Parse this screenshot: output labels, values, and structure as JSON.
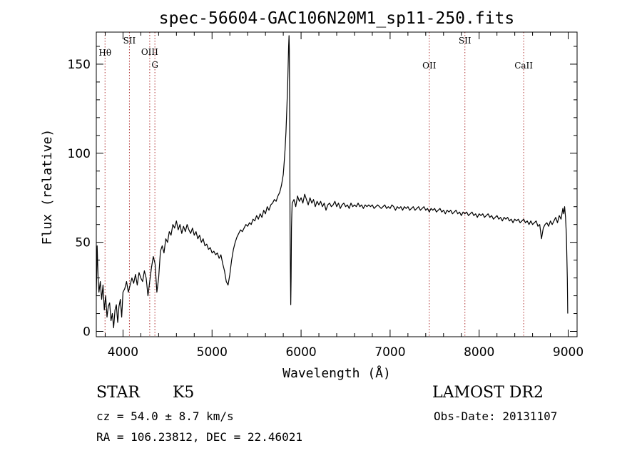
{
  "chart_data": {
    "type": "line",
    "title": "spec-56604-GAC106N20M1_sp11-250.fits",
    "xlabel": "Wavelength (Å)",
    "ylabel": "Flux (relative)",
    "xlim": [
      3700,
      9100
    ],
    "ylim": [
      -3,
      168
    ],
    "x_ticks": [
      4000,
      5000,
      6000,
      7000,
      8000,
      9000
    ],
    "y_ticks": [
      0,
      50,
      100,
      150
    ],
    "grid": false,
    "series": [
      {
        "points": [
          [
            3700,
            20
          ],
          [
            3710,
            48
          ],
          [
            3720,
            30
          ],
          [
            3730,
            22
          ],
          [
            3745,
            28
          ],
          [
            3760,
            18
          ],
          [
            3775,
            26
          ],
          [
            3790,
            12
          ],
          [
            3805,
            20
          ],
          [
            3820,
            8
          ],
          [
            3835,
            14
          ],
          [
            3850,
            16
          ],
          [
            3865,
            6
          ],
          [
            3880,
            10
          ],
          [
            3895,
            2
          ],
          [
            3910,
            12
          ],
          [
            3925,
            15
          ],
          [
            3940,
            5
          ],
          [
            3955,
            14
          ],
          [
            3970,
            18
          ],
          [
            3985,
            8
          ],
          [
            4000,
            22
          ],
          [
            4020,
            24
          ],
          [
            4040,
            28
          ],
          [
            4060,
            22
          ],
          [
            4080,
            26
          ],
          [
            4100,
            30
          ],
          [
            4120,
            27
          ],
          [
            4140,
            32
          ],
          [
            4160,
            26
          ],
          [
            4180,
            33
          ],
          [
            4200,
            30
          ],
          [
            4220,
            28
          ],
          [
            4240,
            34
          ],
          [
            4260,
            30
          ],
          [
            4280,
            20
          ],
          [
            4300,
            28
          ],
          [
            4320,
            36
          ],
          [
            4340,
            42
          ],
          [
            4360,
            38
          ],
          [
            4380,
            22
          ],
          [
            4400,
            30
          ],
          [
            4420,
            45
          ],
          [
            4440,
            48
          ],
          [
            4460,
            44
          ],
          [
            4480,
            52
          ],
          [
            4500,
            50
          ],
          [
            4520,
            56
          ],
          [
            4540,
            54
          ],
          [
            4560,
            60
          ],
          [
            4580,
            58
          ],
          [
            4600,
            62
          ],
          [
            4620,
            57
          ],
          [
            4640,
            60
          ],
          [
            4660,
            55
          ],
          [
            4680,
            59
          ],
          [
            4700,
            56
          ],
          [
            4720,
            60
          ],
          [
            4740,
            57
          ],
          [
            4760,
            55
          ],
          [
            4780,
            58
          ],
          [
            4800,
            54
          ],
          [
            4820,
            56
          ],
          [
            4840,
            52
          ],
          [
            4860,
            54
          ],
          [
            4880,
            50
          ],
          [
            4900,
            52
          ],
          [
            4920,
            48
          ],
          [
            4940,
            49
          ],
          [
            4960,
            46
          ],
          [
            4980,
            47
          ],
          [
            5000,
            44
          ],
          [
            5020,
            45
          ],
          [
            5040,
            43
          ],
          [
            5060,
            44
          ],
          [
            5080,
            41
          ],
          [
            5100,
            43
          ],
          [
            5120,
            38
          ],
          [
            5140,
            34
          ],
          [
            5160,
            28
          ],
          [
            5180,
            26
          ],
          [
            5200,
            32
          ],
          [
            5220,
            40
          ],
          [
            5240,
            46
          ],
          [
            5260,
            50
          ],
          [
            5280,
            53
          ],
          [
            5300,
            55
          ],
          [
            5320,
            57
          ],
          [
            5340,
            56
          ],
          [
            5360,
            58
          ],
          [
            5380,
            60
          ],
          [
            5400,
            59
          ],
          [
            5420,
            61
          ],
          [
            5440,
            60
          ],
          [
            5460,
            63
          ],
          [
            5480,
            62
          ],
          [
            5500,
            65
          ],
          [
            5520,
            63
          ],
          [
            5540,
            66
          ],
          [
            5560,
            64
          ],
          [
            5580,
            68
          ],
          [
            5600,
            66
          ],
          [
            5620,
            70
          ],
          [
            5640,
            68
          ],
          [
            5660,
            71
          ],
          [
            5680,
            72
          ],
          [
            5700,
            74
          ],
          [
            5720,
            73
          ],
          [
            5740,
            76
          ],
          [
            5760,
            78
          ],
          [
            5780,
            82
          ],
          [
            5800,
            88
          ],
          [
            5810,
            95
          ],
          [
            5820,
            102
          ],
          [
            5830,
            112
          ],
          [
            5840,
            125
          ],
          [
            5850,
            140
          ],
          [
            5855,
            150
          ],
          [
            5860,
            160
          ],
          [
            5865,
            166
          ],
          [
            5868,
            158
          ],
          [
            5872,
            120
          ],
          [
            5876,
            60
          ],
          [
            5880,
            35
          ],
          [
            5884,
            15
          ],
          [
            5888,
            30
          ],
          [
            5892,
            58
          ],
          [
            5896,
            66
          ],
          [
            5900,
            72
          ],
          [
            5920,
            74
          ],
          [
            5940,
            70
          ],
          [
            5960,
            76
          ],
          [
            5980,
            73
          ],
          [
            6000,
            75
          ],
          [
            6020,
            72
          ],
          [
            6040,
            77
          ],
          [
            6060,
            74
          ],
          [
            6080,
            71
          ],
          [
            6100,
            75
          ],
          [
            6120,
            72
          ],
          [
            6140,
            74
          ],
          [
            6160,
            70
          ],
          [
            6180,
            73
          ],
          [
            6200,
            71
          ],
          [
            6220,
            73
          ],
          [
            6240,
            70
          ],
          [
            6260,
            72
          ],
          [
            6280,
            68
          ],
          [
            6300,
            71
          ],
          [
            6320,
            72
          ],
          [
            6340,
            70
          ],
          [
            6360,
            71
          ],
          [
            6380,
            73
          ],
          [
            6400,
            70
          ],
          [
            6420,
            72
          ],
          [
            6440,
            69
          ],
          [
            6460,
            71
          ],
          [
            6480,
            72
          ],
          [
            6500,
            70
          ],
          [
            6520,
            71
          ],
          [
            6540,
            69
          ],
          [
            6560,
            72
          ],
          [
            6580,
            70
          ],
          [
            6600,
            71
          ],
          [
            6620,
            70
          ],
          [
            6640,
            72
          ],
          [
            6660,
            70
          ],
          [
            6680,
            71
          ],
          [
            6700,
            69
          ],
          [
            6720,
            71
          ],
          [
            6740,
            70
          ],
          [
            6760,
            71
          ],
          [
            6780,
            70
          ],
          [
            6800,
            71
          ],
          [
            6820,
            69
          ],
          [
            6840,
            70
          ],
          [
            6860,
            71
          ],
          [
            6880,
            70
          ],
          [
            6900,
            69
          ],
          [
            6920,
            70
          ],
          [
            6940,
            71
          ],
          [
            6960,
            69
          ],
          [
            6980,
            70
          ],
          [
            7000,
            69
          ],
          [
            7020,
            71
          ],
          [
            7040,
            70
          ],
          [
            7060,
            68
          ],
          [
            7080,
            70
          ],
          [
            7100,
            69
          ],
          [
            7120,
            70
          ],
          [
            7140,
            68
          ],
          [
            7160,
            70
          ],
          [
            7180,
            69
          ],
          [
            7200,
            70
          ],
          [
            7220,
            68
          ],
          [
            7240,
            69
          ],
          [
            7260,
            70
          ],
          [
            7280,
            68
          ],
          [
            7300,
            69
          ],
          [
            7320,
            70
          ],
          [
            7340,
            68
          ],
          [
            7360,
            69
          ],
          [
            7380,
            70
          ],
          [
            7400,
            68
          ],
          [
            7420,
            69
          ],
          [
            7440,
            67
          ],
          [
            7460,
            69
          ],
          [
            7480,
            68
          ],
          [
            7500,
            69
          ],
          [
            7520,
            67
          ],
          [
            7540,
            68
          ],
          [
            7560,
            69
          ],
          [
            7580,
            67
          ],
          [
            7600,
            68
          ],
          [
            7620,
            66
          ],
          [
            7640,
            68
          ],
          [
            7660,
            67
          ],
          [
            7680,
            68
          ],
          [
            7700,
            66
          ],
          [
            7720,
            67
          ],
          [
            7740,
            68
          ],
          [
            7760,
            66
          ],
          [
            7780,
            67
          ],
          [
            7800,
            65
          ],
          [
            7820,
            67
          ],
          [
            7840,
            66
          ],
          [
            7860,
            67
          ],
          [
            7880,
            65
          ],
          [
            7900,
            66
          ],
          [
            7920,
            67
          ],
          [
            7940,
            65
          ],
          [
            7960,
            66
          ],
          [
            7980,
            64
          ],
          [
            8000,
            66
          ],
          [
            8020,
            65
          ],
          [
            8040,
            66
          ],
          [
            8060,
            64
          ],
          [
            8080,
            65
          ],
          [
            8100,
            66
          ],
          [
            8120,
            64
          ],
          [
            8140,
            65
          ],
          [
            8160,
            63
          ],
          [
            8180,
            64
          ],
          [
            8200,
            65
          ],
          [
            8220,
            63
          ],
          [
            8240,
            64
          ],
          [
            8260,
            62
          ],
          [
            8280,
            64
          ],
          [
            8300,
            63
          ],
          [
            8320,
            64
          ],
          [
            8340,
            62
          ],
          [
            8360,
            63
          ],
          [
            8380,
            61
          ],
          [
            8400,
            63
          ],
          [
            8420,
            62
          ],
          [
            8440,
            63
          ],
          [
            8460,
            61
          ],
          [
            8480,
            62
          ],
          [
            8500,
            63
          ],
          [
            8520,
            61
          ],
          [
            8540,
            62
          ],
          [
            8560,
            60
          ],
          [
            8580,
            62
          ],
          [
            8600,
            60
          ],
          [
            8620,
            61
          ],
          [
            8640,
            62
          ],
          [
            8660,
            59
          ],
          [
            8680,
            60
          ],
          [
            8700,
            52
          ],
          [
            8720,
            58
          ],
          [
            8740,
            60
          ],
          [
            8760,
            61
          ],
          [
            8780,
            59
          ],
          [
            8800,
            62
          ],
          [
            8820,
            60
          ],
          [
            8840,
            62
          ],
          [
            8860,
            64
          ],
          [
            8880,
            61
          ],
          [
            8900,
            65
          ],
          [
            8920,
            63
          ],
          [
            8940,
            69
          ],
          [
            8950,
            66
          ],
          [
            8960,
            70
          ],
          [
            8970,
            64
          ],
          [
            8980,
            54
          ],
          [
            8990,
            30
          ],
          [
            8995,
            10
          ]
        ]
      }
    ],
    "lines": [
      {
        "label": "Hθ",
        "x": 3798
      },
      {
        "label": "SII",
        "x": 4072
      },
      {
        "label": "OIII",
        "x": 4300
      },
      {
        "label": "G",
        "x": 4358
      },
      {
        "label": "OII",
        "x": 7440
      },
      {
        "label": "SII",
        "x": 7840
      },
      {
        "label": "CaII",
        "x": 8500
      }
    ]
  },
  "info": {
    "object_class": "STAR",
    "subclass": "K5",
    "survey": "LAMOST DR2",
    "redshift": "cz = 54.0 ± 8.7 km/s",
    "obs_date": "Obs-Date: 20131107",
    "coords": "RA = 106.23812, DEC =  22.46021"
  }
}
